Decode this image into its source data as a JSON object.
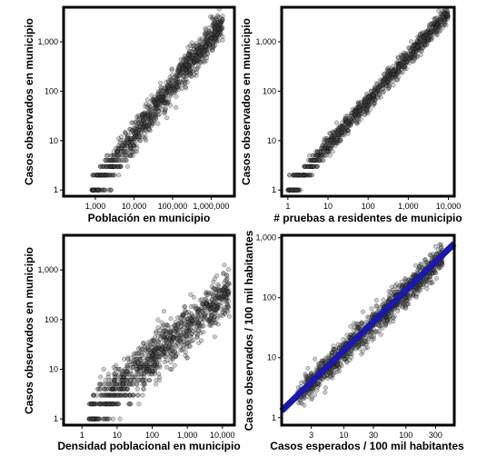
{
  "chart_data": [
    {
      "type": "scatter",
      "xlabel": "Población en municipio",
      "ylabel": "Casos observados en municipio",
      "x_scale": "log",
      "y_scale": "log",
      "xlim": [
        150,
        4000000
      ],
      "ylim": [
        0.75,
        5000
      ],
      "x_ticks": [
        {
          "value": 1000,
          "label": "1,000"
        },
        {
          "value": 10000,
          "label": "10,000"
        },
        {
          "value": 100000,
          "label": "100,000"
        },
        {
          "value": 1000000,
          "label": "1,000,000"
        }
      ],
      "y_ticks": [
        {
          "value": 1,
          "label": "1"
        },
        {
          "value": 10,
          "label": "10"
        },
        {
          "value": 100,
          "label": "100"
        },
        {
          "value": 1000,
          "label": "1,000"
        }
      ],
      "grid": false,
      "trend": {
        "log_x": [
          2.9,
          6.3
        ],
        "log_y": [
          0.0,
          3.4
        ],
        "spread": 0.38
      },
      "n_points": 1100,
      "point_color": "#444444"
    },
    {
      "type": "scatter",
      "xlabel": "# pruebas a residentes de municipio",
      "ylabel": "Casos observados en municipio",
      "x_scale": "log",
      "y_scale": "log",
      "xlim": [
        0.7,
        14000
      ],
      "ylim": [
        0.75,
        5000
      ],
      "x_ticks": [
        {
          "value": 1,
          "label": "1"
        },
        {
          "value": 10,
          "label": "10"
        },
        {
          "value": 100,
          "label": "100"
        },
        {
          "value": 1000,
          "label": "1,000"
        },
        {
          "value": 10000,
          "label": "10,000"
        }
      ],
      "y_ticks": [
        {
          "value": 1,
          "label": "1"
        },
        {
          "value": 10,
          "label": "10"
        },
        {
          "value": 100,
          "label": "100"
        },
        {
          "value": 1000,
          "label": "1,000"
        }
      ],
      "grid": false,
      "trend": {
        "log_x": [
          0.0,
          4.0
        ],
        "log_y": [
          0.0,
          3.6
        ],
        "spread": 0.22
      },
      "n_points": 1100,
      "point_color": "#444444"
    },
    {
      "type": "scatter",
      "xlabel": "Densidad poblacional en municipio",
      "ylabel": "Casos observados en municipio",
      "x_scale": "log",
      "y_scale": "log",
      "xlim": [
        0.3,
        22000
      ],
      "ylim": [
        0.75,
        5000
      ],
      "x_ticks": [
        {
          "value": 1,
          "label": "1"
        },
        {
          "value": 10,
          "label": "10"
        },
        {
          "value": 100,
          "label": "100"
        },
        {
          "value": 1000,
          "label": "1,000"
        },
        {
          "value": 10000,
          "label": "10,000"
        }
      ],
      "y_ticks": [
        {
          "value": 1,
          "label": "1"
        },
        {
          "value": 10,
          "label": "10"
        },
        {
          "value": 100,
          "label": "100"
        },
        {
          "value": 1000,
          "label": "1,000"
        }
      ],
      "grid": false,
      "trend": {
        "log_x": [
          0.2,
          4.2
        ],
        "log_y": [
          0.1,
          2.6
        ],
        "spread": 0.55
      },
      "n_points": 1100,
      "point_color": "#444444"
    },
    {
      "type": "scatter",
      "xlabel": "Casos esperados / 100 mil habitantes",
      "ylabel": "Casos observados / 100 mil habitantes",
      "x_scale": "log",
      "y_scale": "log",
      "xlim": [
        1.0,
        600
      ],
      "ylim": [
        0.75,
        1100
      ],
      "x_ticks": [
        {
          "value": 3,
          "label": "3"
        },
        {
          "value": 10,
          "label": "10"
        },
        {
          "value": 30,
          "label": "30"
        },
        {
          "value": 100,
          "label": "100"
        },
        {
          "value": 300,
          "label": "300"
        }
      ],
      "y_ticks": [
        {
          "value": 1,
          "label": "1"
        },
        {
          "value": 10,
          "label": "10"
        },
        {
          "value": 100,
          "label": "100"
        },
        {
          "value": 1000,
          "label": "1,000"
        }
      ],
      "grid": false,
      "trend": {
        "log_x": [
          0.25,
          2.6
        ],
        "log_y": [
          0.35,
          2.7
        ],
        "spread": 0.28
      },
      "n_points": 1100,
      "point_color": "#444444",
      "fit_line": {
        "x": [
          1.0,
          600
        ],
        "y": [
          1.3,
          800
        ],
        "color": "#1a1aa6"
      }
    }
  ]
}
